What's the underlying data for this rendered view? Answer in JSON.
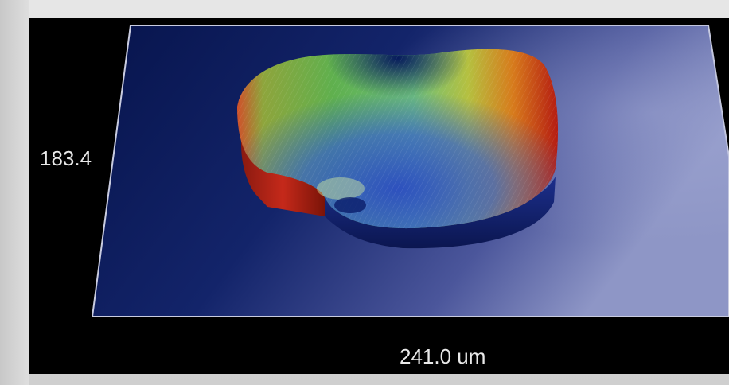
{
  "figure": {
    "y_axis_label": "183.4",
    "x_axis_label": "241.0 um"
  },
  "colors": {
    "background": "#000000",
    "plane_dark": "#0b1a55",
    "plane_light": "#8890c2",
    "plane_edge": "#c9cce0",
    "surface_low": "#1e3aa8",
    "surface_mid": "#7fc46a",
    "surface_high": "#c92412"
  }
}
